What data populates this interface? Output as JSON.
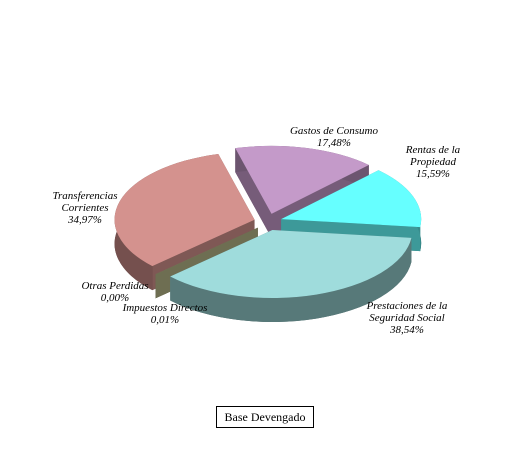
{
  "chart_data": {
    "type": "pie3d",
    "title": "Base Devengado",
    "categories": [
      "Gastos de Consumo",
      "Rentas de la Propiedad",
      "Prestaciones de la Seguridad Social",
      "Impuestos Directos",
      "Otras Perdidas",
      "Transferencias Corrientes"
    ],
    "values": [
      17.48,
      15.59,
      38.54,
      0.01,
      0.0,
      34.97
    ],
    "value_labels": [
      "17,48%",
      "15,59%",
      "38,54%",
      "0,01%",
      "0,00%",
      "34,97%"
    ],
    "colors": [
      "#c49ac9",
      "#66ffff",
      "#9fdcdc",
      "#b8b888",
      "#b8b888",
      "#d4928e"
    ]
  }
}
